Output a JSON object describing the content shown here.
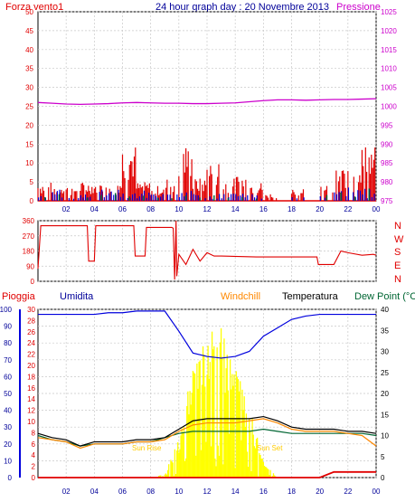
{
  "title": "24 hour graph day : 20 Novembre 2013",
  "colors": {
    "red": "#e00000",
    "magenta": "#cc00cc",
    "navy": "#000099",
    "blue": "#0000dd",
    "orange": "#ff8800",
    "black": "#000000",
    "green": "#006633",
    "yellow": "#ffff00",
    "grid": "#c8c8c8",
    "frame": "#000000"
  },
  "chart_data": [
    {
      "type": "line",
      "name": "wind-pressure",
      "left_label": "Forza vento1",
      "right_label": "Pressione",
      "x_ticks": [
        "02",
        "04",
        "06",
        "08",
        "10",
        "12",
        "14",
        "16",
        "18",
        "20",
        "22",
        "00"
      ],
      "y_left_ticks": [
        0,
        5,
        10,
        15,
        20,
        25,
        30,
        35,
        40,
        45,
        50
      ],
      "y_left_range": [
        0,
        50
      ],
      "y_right_ticks": [
        975,
        980,
        985,
        990,
        995,
        1000,
        1005,
        1010,
        1015,
        1020,
        1025
      ],
      "y_right_range": [
        975,
        1025
      ],
      "pressure": [
        1001.0,
        1000.8,
        1000.6,
        1000.5,
        1000.6,
        1000.7,
        1000.9,
        1001.0,
        1000.9,
        1000.8,
        1000.8,
        1000.7,
        1000.7,
        1000.8,
        1000.9,
        1001.2,
        1001.5,
        1001.7,
        1001.7,
        1001.6,
        1001.7,
        1001.8,
        1001.8,
        1001.9,
        1002.0
      ],
      "wind_gust_hourly_max": [
        5,
        5,
        4,
        5,
        5,
        6,
        15,
        5,
        4,
        6,
        15,
        6,
        11,
        6,
        7,
        5,
        2,
        0,
        4,
        0,
        4,
        9,
        12,
        15
      ],
      "wind_avg_hourly_max": [
        2,
        3,
        1,
        2,
        3,
        3,
        2,
        3,
        2,
        2,
        3,
        2,
        3,
        2,
        2,
        2,
        0,
        0,
        1,
        0,
        2,
        3,
        4,
        5
      ]
    },
    {
      "type": "line",
      "name": "wind-direction",
      "y_right_ticks": [
        "N",
        "W",
        "S",
        "E",
        "N"
      ],
      "y_left_ticks": [
        0,
        90,
        180,
        270,
        360
      ],
      "y_range": [
        0,
        360
      ],
      "direction": [
        [
          0.0,
          75
        ],
        [
          0.2,
          330
        ],
        [
          3.5,
          330
        ],
        [
          3.6,
          120
        ],
        [
          4.0,
          120
        ],
        [
          4.1,
          330
        ],
        [
          6.8,
          330
        ],
        [
          6.9,
          150
        ],
        [
          7.6,
          150
        ],
        [
          7.7,
          320
        ],
        [
          9.5,
          320
        ],
        [
          9.6,
          315
        ],
        [
          9.7,
          10
        ],
        [
          9.8,
          360
        ],
        [
          9.85,
          30
        ],
        [
          10.0,
          160
        ],
        [
          10.5,
          100
        ],
        [
          11.0,
          190
        ],
        [
          11.5,
          120
        ],
        [
          12.0,
          170
        ],
        [
          12.5,
          150
        ],
        [
          13.0,
          150
        ],
        [
          15.5,
          145
        ],
        [
          19.8,
          145
        ],
        [
          19.9,
          100
        ],
        [
          21.0,
          100
        ],
        [
          21.5,
          180
        ],
        [
          22.0,
          170
        ],
        [
          23.0,
          155
        ],
        [
          23.8,
          160
        ],
        [
          24.0,
          155
        ]
      ]
    },
    {
      "type": "line",
      "name": "rain-humidity-temperature",
      "labels": [
        "Pioggia",
        "Umidita",
        "Windchill",
        "Temperatura",
        "Dew Point (°C"
      ],
      "annotations": [
        "Sun Rise",
        "Sun Set"
      ],
      "x_ticks": [
        "02",
        "04",
        "06",
        "08",
        "10",
        "12",
        "14",
        "16",
        "18",
        "20",
        "22",
        "00"
      ],
      "humidity_ticks": [
        0,
        10,
        20,
        30,
        40,
        50,
        60,
        70,
        80,
        90,
        100
      ],
      "rain_ticks": [
        0,
        2,
        4,
        6,
        8,
        10,
        12,
        14,
        16,
        18,
        20,
        22,
        24,
        26,
        28,
        30
      ],
      "temp_ticks": [
        0,
        5,
        10,
        15,
        20,
        25,
        30,
        35,
        40
      ],
      "y_humidity_range": [
        0,
        100
      ],
      "y_rain_range": [
        0,
        30
      ],
      "y_temp_range": [
        0,
        40
      ],
      "humidity": [
        97,
        97,
        97,
        97,
        97,
        98,
        98,
        99,
        99,
        99,
        87,
        74,
        72,
        71,
        72,
        75,
        84,
        89,
        94,
        96,
        97,
        97,
        97,
        97,
        97
      ],
      "temperature": [
        10.5,
        9.5,
        9.0,
        7.5,
        8.5,
        8.5,
        8.5,
        9.0,
        9.0,
        9.5,
        11.5,
        13.5,
        14.0,
        14.0,
        14.0,
        14.0,
        14.5,
        13.5,
        12.0,
        11.5,
        11.5,
        11.5,
        11.0,
        11.0,
        10.5
      ],
      "windchill": [
        9.5,
        9.0,
        8.5,
        7.0,
        8.0,
        8.0,
        8.0,
        8.5,
        8.5,
        9.0,
        11.0,
        12.5,
        13.0,
        13.0,
        13.0,
        13.5,
        14.0,
        13.0,
        11.5,
        11.0,
        11.0,
        11.0,
        10.5,
        10.0,
        7.5
      ],
      "dew_point": [
        10.0,
        9.0,
        8.5,
        7.5,
        8.0,
        8.0,
        8.0,
        8.5,
        8.5,
        9.5,
        10.5,
        11.0,
        11.0,
        11.0,
        11.0,
        11.0,
        11.5,
        11.0,
        10.5,
        10.5,
        10.5,
        10.5,
        10.5,
        10.5,
        10.0
      ],
      "solar": [
        0,
        0,
        0,
        0,
        0,
        0,
        0,
        0,
        0,
        2,
        25,
        70,
        90,
        95,
        70,
        45,
        10,
        0,
        0,
        0,
        0,
        0,
        0,
        0,
        0
      ],
      "rain": [
        0,
        0,
        0,
        0,
        0,
        0,
        0,
        0,
        0,
        0,
        0,
        0,
        0,
        0,
        0,
        0,
        0,
        0,
        0,
        0,
        0,
        1,
        1,
        1,
        1
      ]
    }
  ]
}
